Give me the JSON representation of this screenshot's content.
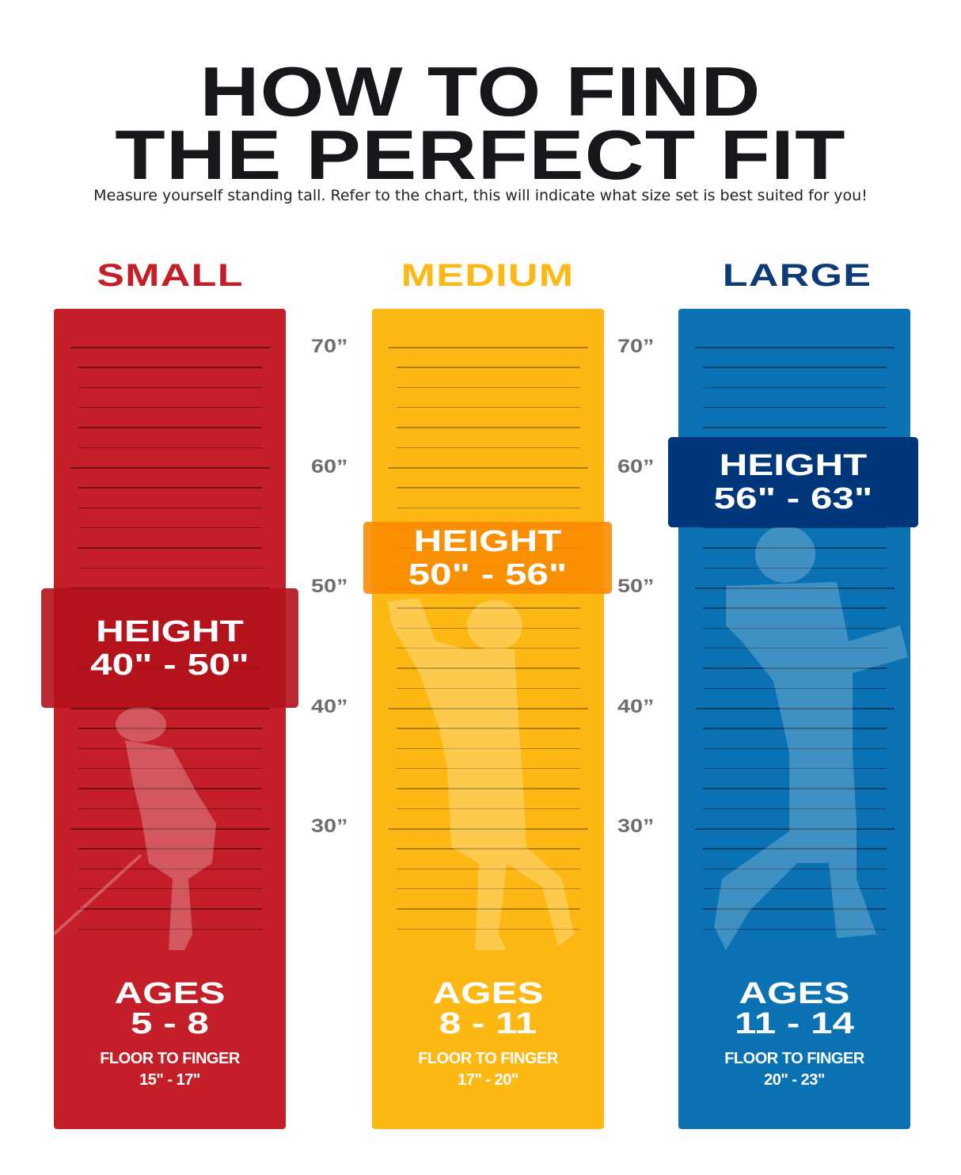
{
  "header": {
    "title_line1": "HOW TO FIND",
    "title_line2": "THE PERFECT FIT",
    "subtitle": "Measure yourself standing tall.  Refer to the chart, this will indicate what size set is best suited for you!"
  },
  "scale_labels": [
    "70”",
    "60”",
    "50”",
    "40”",
    "30”"
  ],
  "sizes": [
    {
      "name": "SMALL",
      "color": "#c41f28",
      "label_color": "#c41f28",
      "box_color": "#b3121b",
      "height_label": "HEIGHT",
      "height_range": "40\" - 50\"",
      "ages_label": "AGES",
      "ages_range": "5 - 8",
      "ftf_label": "FLOOR TO FINGER",
      "ftf_range": "15\" - 17\""
    },
    {
      "name": "MEDIUM",
      "color": "#fdb813",
      "label_color": "#fdb813",
      "box_color": "#f98b00",
      "height_label": "HEIGHT",
      "height_range": "50\" - 56\"",
      "ages_label": "AGES",
      "ages_range": "8 - 11",
      "ftf_label": "FLOOR TO FINGER",
      "ftf_range": "17\" - 20\""
    },
    {
      "name": "LARGE",
      "color": "#0a72b3",
      "label_color": "#0f3a78",
      "box_color": "#00367a",
      "height_label": "HEIGHT",
      "height_range": "56\" - 63\"",
      "ages_label": "AGES",
      "ages_range": "11 - 14",
      "ftf_label": "FLOOR TO FINGER",
      "ftf_range": "20\" - 23\""
    }
  ]
}
